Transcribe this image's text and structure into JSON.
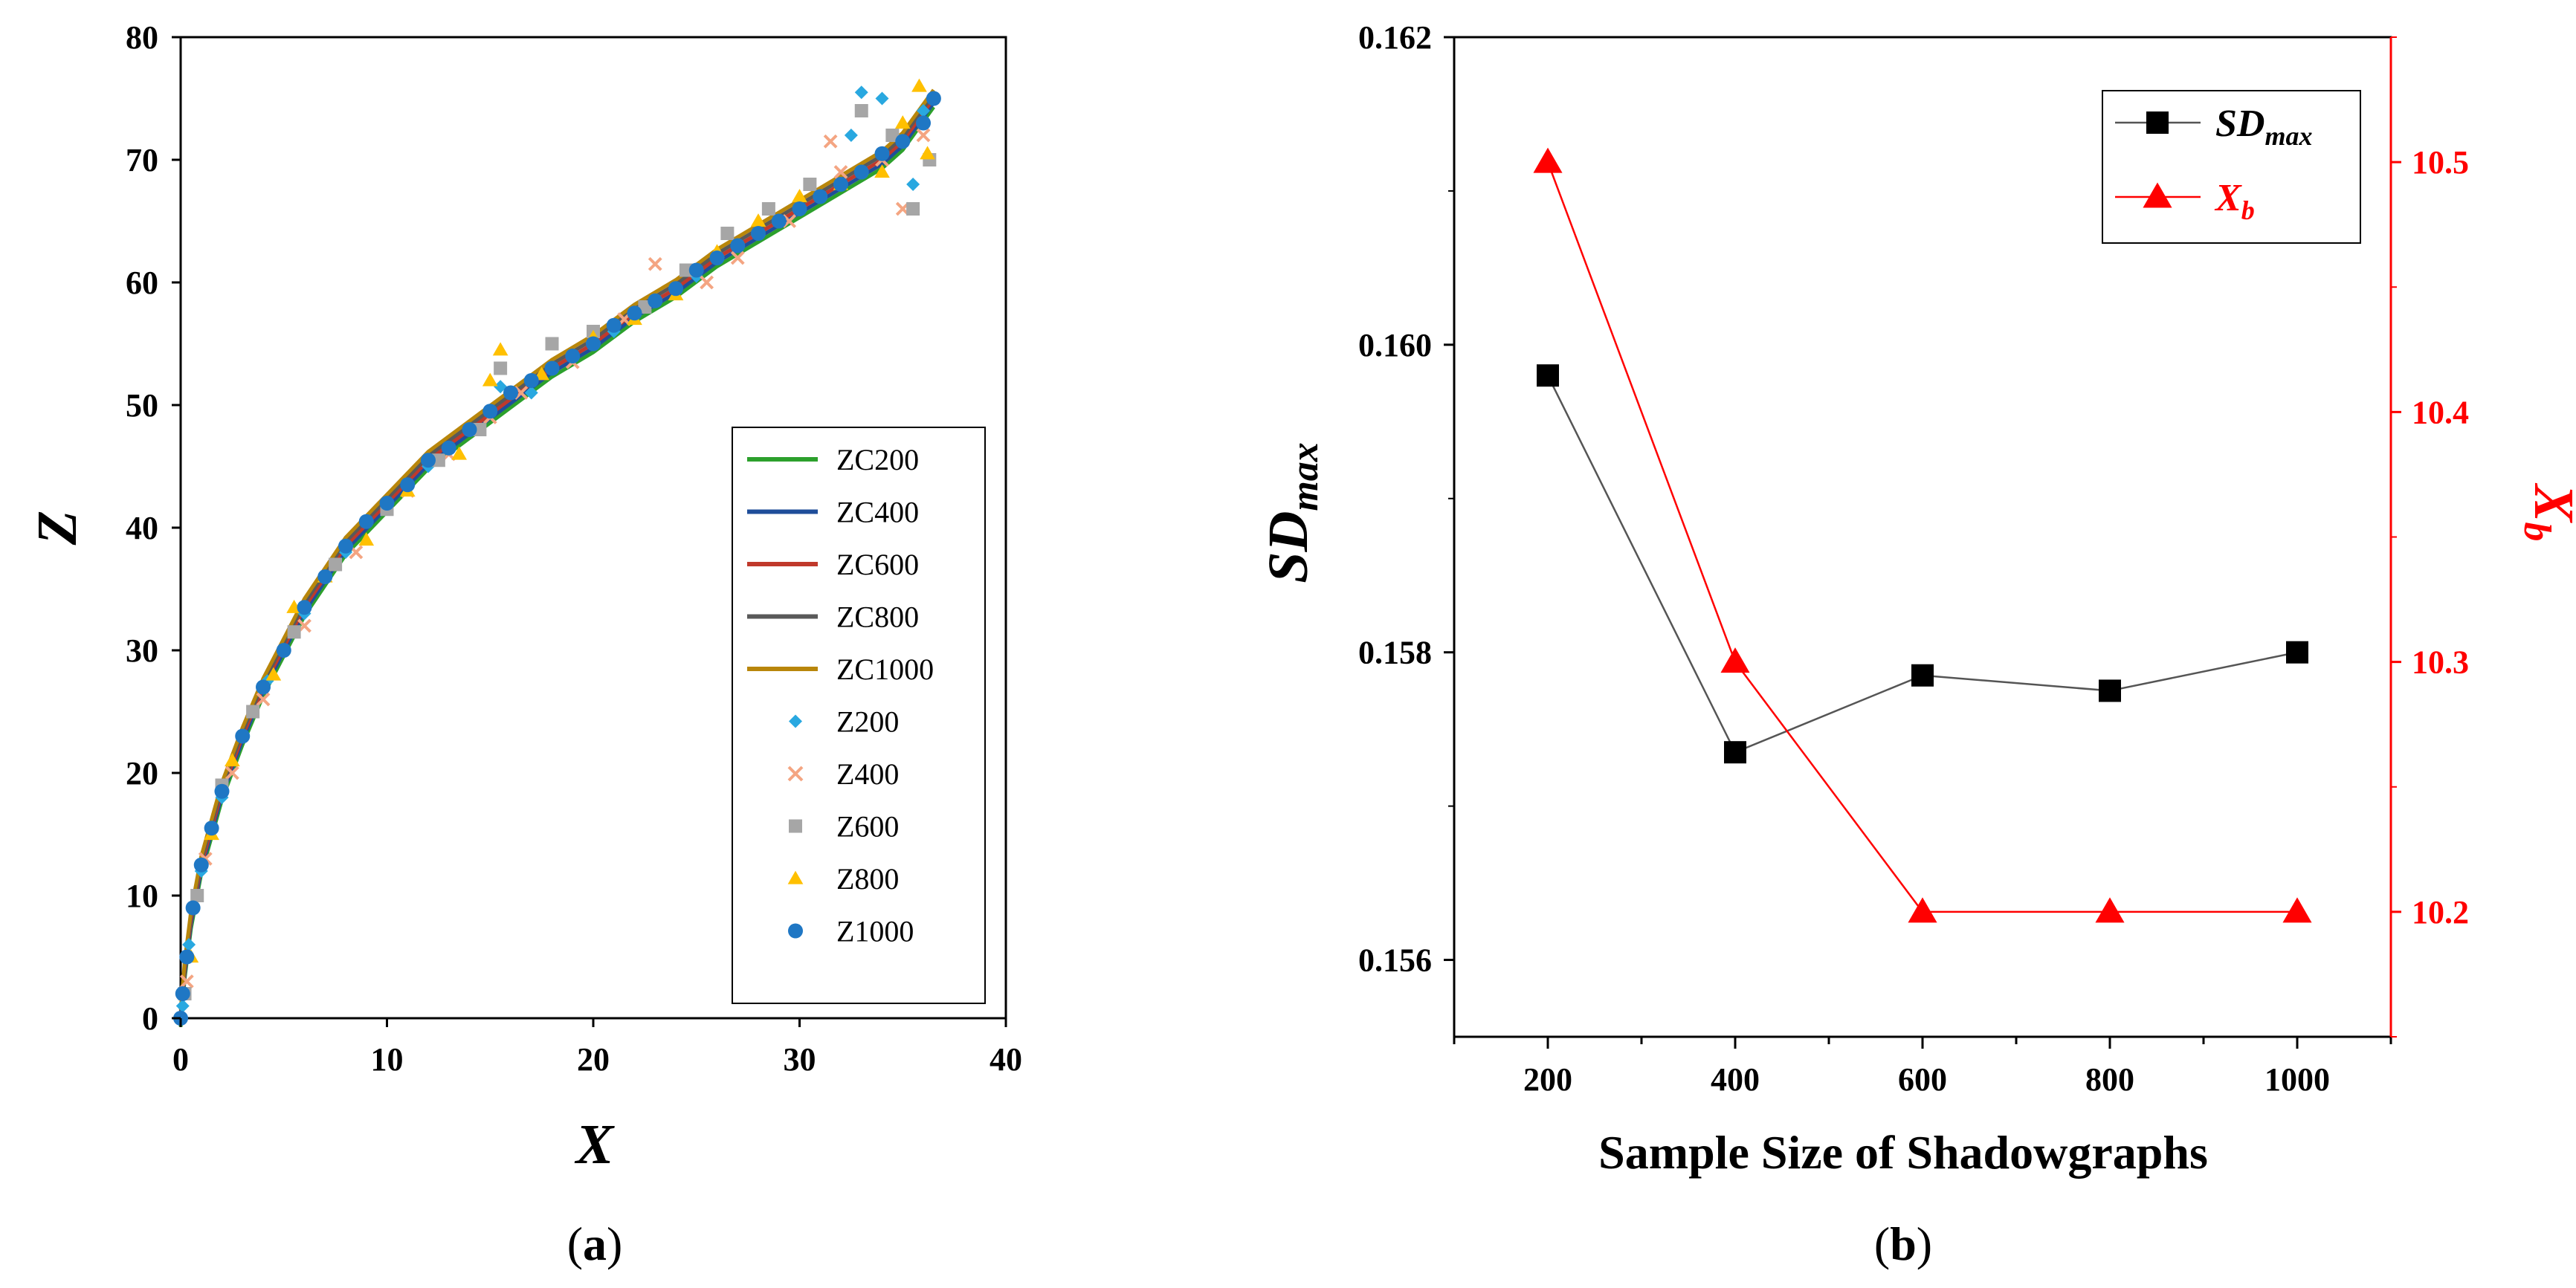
{
  "chart_data": [
    {
      "panel": "a",
      "caption_open": "(",
      "caption_letter": "a",
      "caption_close": ")",
      "type": "scatter",
      "xlabel": "X",
      "ylabel": "Z",
      "xlim": [
        0,
        40
      ],
      "ylim": [
        0,
        80
      ],
      "xticks": [
        0,
        10,
        20,
        30,
        40
      ],
      "yticks": [
        0,
        10,
        20,
        30,
        40,
        50,
        60,
        70,
        80
      ],
      "x_tick_labels": [
        "0",
        "10",
        "20",
        "30",
        "40"
      ],
      "y_tick_labels": [
        "0",
        "10",
        "20",
        "30",
        "40",
        "50",
        "60",
        "70",
        "80"
      ],
      "legend_position": "bottom-right",
      "line_series": [
        {
          "name": "ZC200",
          "color": "#2ca02c"
        },
        {
          "name": "ZC400",
          "color": "#1f4e9a"
        },
        {
          "name": "ZC600",
          "color": "#c0392b"
        },
        {
          "name": "ZC800",
          "color": "#595959"
        },
        {
          "name": "ZC1000",
          "color": "#b8860b"
        }
      ],
      "line_curve": {
        "x": [
          0.0,
          0.2,
          0.5,
          1.0,
          2.0,
          3.0,
          4.0,
          6.0,
          8.0,
          10.0,
          12.0,
          14.0,
          16.0,
          18.0,
          20.0,
          22.0,
          24.0,
          26.0,
          28.0,
          30.0,
          32.0,
          34.0,
          35.0,
          36.5
        ],
        "y": [
          0.0,
          4.0,
          8.0,
          12.5,
          18.5,
          23.0,
          27.0,
          33.5,
          38.5,
          42.0,
          45.5,
          48.0,
          50.5,
          53.0,
          55.0,
          57.5,
          59.5,
          62.0,
          64.0,
          66.0,
          68.0,
          70.0,
          71.5,
          75.0
        ]
      },
      "scatter_series": [
        {
          "name": "Z200",
          "marker": "diamond",
          "color": "#29a8e0",
          "points": [
            [
              0.1,
              1
            ],
            [
              0.4,
              6
            ],
            [
              1,
              12
            ],
            [
              2,
              18
            ],
            [
              3,
              23
            ],
            [
              4.2,
              27.5
            ],
            [
              6,
              33
            ],
            [
              8,
              38
            ],
            [
              10,
              42
            ],
            [
              12,
              45
            ],
            [
              14,
              48
            ],
            [
              15.5,
              51.5
            ],
            [
              17,
              51
            ],
            [
              19,
              54
            ],
            [
              21,
              56
            ],
            [
              23,
              58.5
            ],
            [
              25,
              60.5
            ],
            [
              27,
              63
            ],
            [
              29,
              65
            ],
            [
              31,
              67
            ],
            [
              32.5,
              72
            ],
            [
              33,
              75.5
            ],
            [
              34,
              75
            ],
            [
              35.5,
              68
            ],
            [
              36,
              74
            ]
          ]
        },
        {
          "name": "Z400",
          "marker": "cross",
          "color": "#f4a582",
          "points": [
            [
              0.3,
              3
            ],
            [
              1.2,
              13
            ],
            [
              2.5,
              20
            ],
            [
              4,
              26
            ],
            [
              6,
              32
            ],
            [
              8.5,
              38
            ],
            [
              11,
              43
            ],
            [
              13,
              46
            ],
            [
              15,
              49
            ],
            [
              16.5,
              51
            ],
            [
              19,
              53.5
            ],
            [
              21.5,
              57
            ],
            [
              23,
              61.5
            ],
            [
              25.5,
              60
            ],
            [
              27,
              62
            ],
            [
              29.5,
              65
            ],
            [
              31.5,
              71.5
            ],
            [
              32,
              69
            ],
            [
              34,
              70
            ],
            [
              35,
              66
            ],
            [
              36,
              72
            ]
          ]
        },
        {
          "name": "Z600",
          "marker": "square",
          "color": "#a6a6a6",
          "points": [
            [
              0.2,
              2
            ],
            [
              0.8,
              10
            ],
            [
              2,
              19
            ],
            [
              3.5,
              25
            ],
            [
              5.5,
              31.5
            ],
            [
              7.5,
              37
            ],
            [
              10,
              41.5
            ],
            [
              12.5,
              45.5
            ],
            [
              14.5,
              48
            ],
            [
              15.5,
              53
            ],
            [
              18,
              55
            ],
            [
              20,
              56
            ],
            [
              22.5,
              58
            ],
            [
              24.5,
              61
            ],
            [
              26.5,
              64
            ],
            [
              28.5,
              66
            ],
            [
              30.5,
              68
            ],
            [
              33,
              74
            ],
            [
              34.5,
              72
            ],
            [
              35.5,
              66
            ],
            [
              36.3,
              70
            ]
          ]
        },
        {
          "name": "Z800",
          "marker": "triangle",
          "color": "#ffc000",
          "points": [
            [
              0.5,
              5
            ],
            [
              1.5,
              15
            ],
            [
              2.5,
              21
            ],
            [
              4.5,
              28
            ],
            [
              5.5,
              33.5
            ],
            [
              7,
              36
            ],
            [
              9,
              39
            ],
            [
              11,
              43
            ],
            [
              13.5,
              46
            ],
            [
              15,
              52
            ],
            [
              15.5,
              54.5
            ],
            [
              17.5,
              52.5
            ],
            [
              20,
              55.5
            ],
            [
              22,
              57
            ],
            [
              24,
              59
            ],
            [
              26,
              62.5
            ],
            [
              28,
              65
            ],
            [
              30,
              67
            ],
            [
              32,
              68
            ],
            [
              34,
              69
            ],
            [
              35,
              73
            ],
            [
              35.8,
              76
            ],
            [
              36.2,
              70.5
            ]
          ]
        },
        {
          "name": "Z1000",
          "marker": "circle",
          "color": "#1f77c4",
          "points": [
            [
              0,
              0
            ],
            [
              0.1,
              2
            ],
            [
              0.3,
              5
            ],
            [
              0.6,
              9
            ],
            [
              1,
              12.5
            ],
            [
              1.5,
              15.5
            ],
            [
              2,
              18.5
            ],
            [
              3,
              23
            ],
            [
              4,
              27
            ],
            [
              5,
              30
            ],
            [
              6,
              33.5
            ],
            [
              7,
              36
            ],
            [
              8,
              38.5
            ],
            [
              9,
              40.5
            ],
            [
              10,
              42
            ],
            [
              11,
              43.5
            ],
            [
              12,
              45.5
            ],
            [
              13,
              46.5
            ],
            [
              14,
              48
            ],
            [
              15,
              49.5
            ],
            [
              16,
              51
            ],
            [
              17,
              52
            ],
            [
              18,
              53
            ],
            [
              19,
              54
            ],
            [
              20,
              55
            ],
            [
              21,
              56.5
            ],
            [
              22,
              57.5
            ],
            [
              23,
              58.5
            ],
            [
              24,
              59.5
            ],
            [
              25,
              61
            ],
            [
              26,
              62
            ],
            [
              27,
              63
            ],
            [
              28,
              64
            ],
            [
              29,
              65
            ],
            [
              30,
              66
            ],
            [
              31,
              67
            ],
            [
              32,
              68
            ],
            [
              33,
              69
            ],
            [
              34,
              70.5
            ],
            [
              35,
              71.5
            ],
            [
              36,
              73
            ],
            [
              36.5,
              75
            ]
          ]
        }
      ]
    },
    {
      "panel": "b",
      "caption_open": "(",
      "caption_letter": "b",
      "caption_close": ")",
      "type": "line",
      "xlabel": "Sample Size of Shadowgraphs",
      "ylabel_left": "SD",
      "ylabel_left_sub": "max",
      "ylabel_right": "X",
      "ylabel_right_sub": "b",
      "categories": [
        200,
        400,
        600,
        800,
        1000
      ],
      "x_tick_labels": [
        "200",
        "400",
        "600",
        "800",
        "1000"
      ],
      "xlim": [
        100,
        1100
      ],
      "ylim_left": [
        0.1555,
        0.162
      ],
      "ylim_right": [
        10.15,
        10.55
      ],
      "yticks_left": [
        "0.156",
        "0.158",
        "0.160",
        "0.162"
      ],
      "yticks_right": [
        "10.2",
        "10.3",
        "10.4",
        "10.5"
      ],
      "legend_position": "top-right",
      "series": [
        {
          "name": "SD",
          "sub": "max",
          "axis": "left",
          "marker": "square",
          "color": "#000000",
          "line_color": "#555555",
          "values": [
            0.1598,
            0.15735,
            0.15785,
            0.15775,
            0.158
          ]
        },
        {
          "name": "X",
          "sub": "b",
          "axis": "right",
          "marker": "triangle",
          "color": "#ff0000",
          "line_color": "#ff0000",
          "values": [
            10.5,
            10.3,
            10.2,
            10.2,
            10.2
          ]
        }
      ]
    }
  ]
}
